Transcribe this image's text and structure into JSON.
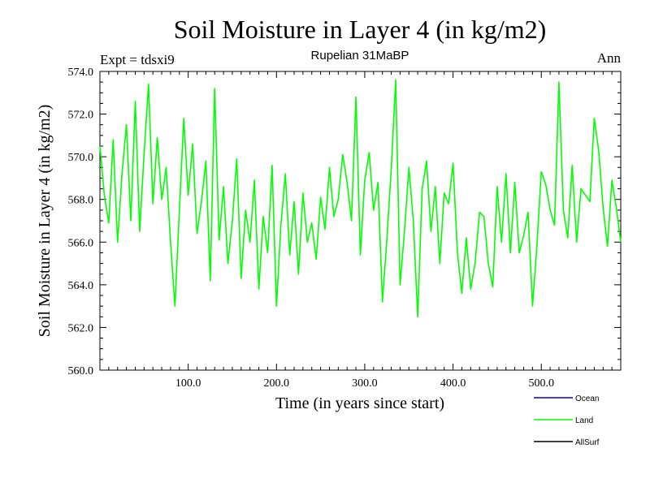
{
  "chart_data": {
    "type": "line",
    "title": "Soil Moisture in Layer 4 (in kg/m2)",
    "subtitle": "Rupelian  31MaBP",
    "experiment_label": "Expt = tdsxi9",
    "season_label": "Ann",
    "xlabel": "Time (in years since start)",
    "ylabel": "Soil Moisture in Layer 4 (in kg/m2)",
    "xlim": [
      0,
      590
    ],
    "ylim": [
      560,
      574
    ],
    "x_ticks": [
      100,
      200,
      300,
      400,
      500
    ],
    "x_tick_labels": [
      "100.0",
      "200.0",
      "300.0",
      "400.0",
      "500.0"
    ],
    "y_ticks": [
      560,
      562,
      564,
      566,
      568,
      570,
      572,
      574
    ],
    "y_tick_labels": [
      "560.0",
      "562.0",
      "564.0",
      "566.0",
      "568.0",
      "570.0",
      "572.0",
      "574.0"
    ],
    "legend": [
      {
        "name": "Ocean",
        "color": "#0000cc"
      },
      {
        "name": "Land",
        "color": "#00ff00"
      },
      {
        "name": "AllSurf",
        "color": "#000000"
      }
    ],
    "series": [
      {
        "name": "Land",
        "color": "#00ff00",
        "x": [
          0,
          5,
          10,
          15,
          20,
          25,
          30,
          35,
          40,
          45,
          50,
          55,
          60,
          65,
          70,
          75,
          80,
          85,
          90,
          95,
          100,
          105,
          110,
          115,
          120,
          125,
          130,
          135,
          140,
          145,
          150,
          155,
          160,
          165,
          170,
          175,
          180,
          185,
          190,
          195,
          200,
          205,
          210,
          215,
          220,
          225,
          230,
          235,
          240,
          245,
          250,
          255,
          260,
          265,
          270,
          275,
          280,
          285,
          290,
          295,
          300,
          305,
          310,
          315,
          320,
          325,
          330,
          335,
          340,
          345,
          350,
          355,
          360,
          365,
          370,
          375,
          380,
          385,
          390,
          395,
          400,
          405,
          410,
          415,
          420,
          425,
          430,
          435,
          440,
          445,
          450,
          455,
          460,
          465,
          470,
          475,
          480,
          485,
          490,
          495,
          500,
          505,
          510,
          515,
          520,
          525,
          530,
          535,
          540,
          545,
          550,
          555,
          560,
          565,
          570,
          575,
          580,
          585,
          590
        ],
        "values": [
          570.5,
          568.2,
          566.9,
          570.8,
          566.0,
          569.2,
          571.5,
          567.0,
          572.6,
          566.5,
          570.1,
          573.4,
          567.8,
          570.9,
          568.0,
          569.5,
          566.0,
          563.0,
          567.5,
          571.8,
          568.2,
          570.6,
          566.4,
          567.9,
          569.8,
          564.2,
          573.2,
          566.1,
          568.6,
          565.0,
          567.0,
          569.9,
          564.3,
          567.5,
          566.0,
          568.9,
          563.8,
          567.2,
          565.5,
          569.6,
          563.0,
          566.8,
          569.2,
          565.4,
          567.9,
          564.5,
          568.3,
          566.0,
          566.9,
          565.2,
          568.1,
          566.6,
          569.5,
          567.2,
          568.0,
          570.1,
          568.8,
          567.0,
          572.8,
          565.4,
          568.9,
          570.2,
          567.5,
          568.8,
          563.2,
          566.1,
          569.4,
          573.6,
          564.0,
          566.5,
          569.5,
          567.0,
          562.5,
          568.5,
          569.8,
          566.5,
          568.6,
          565.0,
          568.3,
          567.8,
          569.7,
          565.5,
          563.6,
          566.2,
          563.8,
          565.0,
          567.4,
          567.2,
          565.0,
          563.9,
          568.6,
          566.0,
          569.2,
          565.5,
          568.8,
          565.5,
          566.3,
          567.4,
          563.0,
          565.8,
          569.3,
          568.7,
          567.5,
          566.8,
          573.5,
          567.5,
          566.2,
          569.6,
          566.0,
          568.5,
          568.2,
          567.9,
          571.8,
          570.3,
          567.6,
          565.8,
          568.9,
          567.6,
          566.0
        ]
      }
    ]
  }
}
